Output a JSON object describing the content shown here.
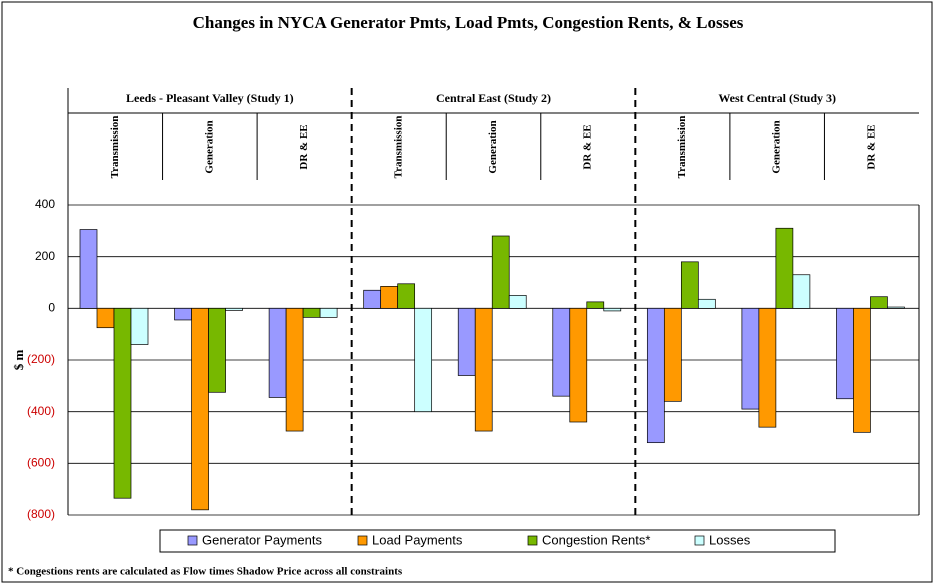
{
  "chart_data": {
    "type": "bar",
    "title": "Changes in NYCA Generator Pmts, Load Pmts, Congestion Rents, & Losses",
    "groups": [
      "Leeds - Pleasant Valley (Study 1)",
      "Central East (Study 2)",
      "West Central (Study 3)"
    ],
    "categories": [
      "Transmission",
      "Generation",
      "DR & EE",
      "Transmission",
      "Generation",
      "DR & EE",
      "Transmission",
      "Generation",
      "DR & EE"
    ],
    "series": [
      {
        "name": "Generator Payments",
        "color": "#9999ff",
        "values": [
          305,
          -45,
          -345,
          70,
          -260,
          -340,
          -520,
          -390,
          -350
        ]
      },
      {
        "name": "Load Payments",
        "color": "#ff9900",
        "values": [
          -75,
          -780,
          -475,
          85,
          -475,
          -440,
          -360,
          -460,
          -480
        ]
      },
      {
        "name": "Congestion Rents*",
        "color": "#77b800",
        "values": [
          -735,
          -325,
          -35,
          95,
          280,
          25,
          180,
          310,
          45
        ]
      },
      {
        "name": "Losses",
        "color": "#ccffff",
        "values": [
          -140,
          -8,
          -35,
          -400,
          50,
          -10,
          35,
          130,
          5
        ]
      }
    ],
    "ylabel": "$ m",
    "ylim": [
      -800,
      400
    ],
    "yticks": [
      {
        "value": -800,
        "label": "(800)"
      },
      {
        "value": -600,
        "label": "(600)"
      },
      {
        "value": -400,
        "label": "(400)"
      },
      {
        "value": -200,
        "label": "(200)"
      },
      0,
      200,
      400
    ],
    "negative_tick_color": "#cc0000",
    "grid": true,
    "legend": "bottom",
    "footnote": "* Congestions rents are calculated as Flow times Shadow Price across all constraints"
  }
}
